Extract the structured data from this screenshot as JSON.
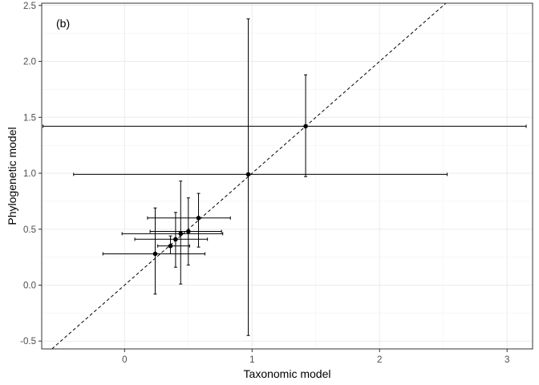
{
  "chart_data": {
    "type": "scatter",
    "panel_label": "(b)",
    "xlabel": "Taxonomic model",
    "ylabel": "Phylogenetic model",
    "xlim": [
      -0.65,
      3.2
    ],
    "ylim": [
      -0.57,
      2.52
    ],
    "x_ticks": [
      0,
      1,
      2,
      3
    ],
    "x_tick_labels": [
      "0",
      "1",
      "2",
      "3"
    ],
    "y_ticks": [
      -0.5,
      0.0,
      0.5,
      1.0,
      1.5,
      2.0,
      2.5
    ],
    "y_tick_labels": [
      "-0.5",
      "0.0",
      "0.5",
      "1.0",
      "1.5",
      "2.0",
      "2.5"
    ],
    "grid": true,
    "reference_line": {
      "type": "identity",
      "style": "dashed"
    },
    "points": [
      {
        "x": 1.42,
        "y": 1.42,
        "x_low": -0.64,
        "x_high": 3.15,
        "y_low": 0.97,
        "y_high": 1.88
      },
      {
        "x": 0.97,
        "y": 0.99,
        "x_low": -0.4,
        "x_high": 2.53,
        "y_low": -0.45,
        "y_high": 2.38
      },
      {
        "x": 0.58,
        "y": 0.6,
        "x_low": 0.18,
        "x_high": 0.83,
        "y_low": 0.34,
        "y_high": 0.82
      },
      {
        "x": 0.5,
        "y": 0.48,
        "x_low": 0.2,
        "x_high": 0.76,
        "y_low": 0.18,
        "y_high": 0.78
      },
      {
        "x": 0.44,
        "y": 0.46,
        "x_low": -0.02,
        "x_high": 0.77,
        "y_low": 0.01,
        "y_high": 0.93
      },
      {
        "x": 0.4,
        "y": 0.41,
        "x_low": 0.08,
        "x_high": 0.65,
        "y_low": 0.16,
        "y_high": 0.65
      },
      {
        "x": 0.36,
        "y": 0.35,
        "x_low": 0.26,
        "x_high": 0.51,
        "y_low": 0.28,
        "y_high": 0.44
      },
      {
        "x": 0.24,
        "y": 0.28,
        "x_low": -0.17,
        "x_high": 0.63,
        "y_low": -0.08,
        "y_high": 0.69
      }
    ]
  }
}
